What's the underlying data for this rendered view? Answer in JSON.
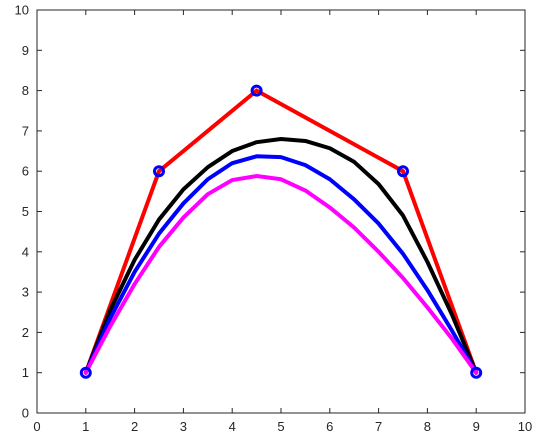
{
  "chart_data": {
    "type": "line",
    "title": "",
    "xlabel": "",
    "ylabel": "",
    "xlim": [
      0,
      10
    ],
    "ylim": [
      0,
      10
    ],
    "x_ticks": [
      0,
      1,
      2,
      3,
      4,
      5,
      6,
      7,
      8,
      9,
      10
    ],
    "y_ticks": [
      0,
      1,
      2,
      3,
      4,
      5,
      6,
      7,
      8,
      9,
      10
    ],
    "x_tick_labels": [
      "0",
      "1",
      "2",
      "3",
      "4",
      "5",
      "6",
      "7",
      "8",
      "9",
      "10"
    ],
    "y_tick_labels": [
      "0",
      "1",
      "2",
      "3",
      "4",
      "5",
      "6",
      "7",
      "8",
      "9",
      "10"
    ],
    "grid": false,
    "legend": "none",
    "control_points": {
      "color": "#0000ff",
      "marker": "circle",
      "x": [
        1,
        2.5,
        4.5,
        7.5,
        9
      ],
      "y": [
        1,
        6,
        8,
        6,
        1
      ]
    },
    "series": [
      {
        "color": "#ff0000",
        "style": "polyline",
        "x": [
          1,
          2.5,
          4.5,
          7.5,
          9
        ],
        "y": [
          1,
          6,
          8,
          6,
          1
        ]
      },
      {
        "color": "#000000",
        "style": "curve",
        "x": [
          1,
          1.5,
          2,
          2.5,
          3,
          3.5,
          4,
          4.5,
          5,
          5.5,
          6,
          6.5,
          7,
          7.5,
          8,
          8.5,
          9
        ],
        "y": [
          1,
          2.55,
          3.8,
          4.8,
          5.55,
          6.1,
          6.5,
          6.72,
          6.8,
          6.75,
          6.57,
          6.23,
          5.68,
          4.9,
          3.75,
          2.45,
          1
        ]
      },
      {
        "color": "#0000ff",
        "style": "curve",
        "x": [
          1,
          1.5,
          2,
          2.5,
          3,
          3.5,
          4,
          4.5,
          5,
          5.5,
          6,
          6.5,
          7,
          7.5,
          8,
          8.5,
          9
        ],
        "y": [
          1,
          2.35,
          3.5,
          4.45,
          5.2,
          5.8,
          6.2,
          6.37,
          6.35,
          6.15,
          5.8,
          5.3,
          4.7,
          3.95,
          3.05,
          2.05,
          1
        ]
      },
      {
        "color": "#ff00ff",
        "style": "curve",
        "x": [
          1,
          1.5,
          2,
          2.5,
          3,
          3.5,
          4,
          4.5,
          5,
          5.5,
          6,
          6.5,
          7,
          7.5,
          8,
          8.5,
          9
        ],
        "y": [
          1,
          2.15,
          3.2,
          4.12,
          4.85,
          5.43,
          5.78,
          5.88,
          5.8,
          5.52,
          5.1,
          4.6,
          4.0,
          3.35,
          2.62,
          1.85,
          1
        ]
      }
    ]
  }
}
